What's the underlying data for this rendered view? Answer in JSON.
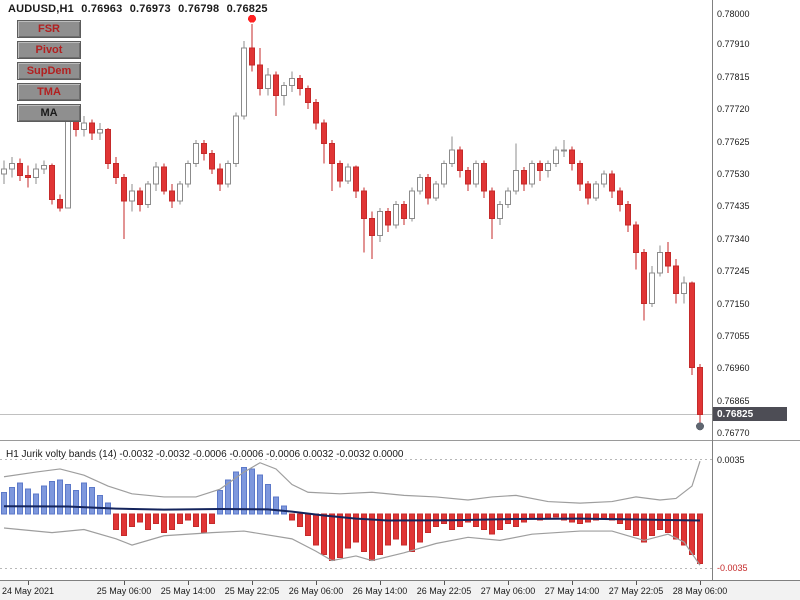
{
  "colors": {
    "bear": "#e03535",
    "bear_stroke": "#c52a2a",
    "bull_fill": "#ffffff",
    "bull_stroke": "#8c8c8c",
    "hist_pos": "#7e98dd",
    "hist_pos_stroke": "#5c79c9",
    "hist_neg": "#e03535",
    "hist_neg_stroke": "#c52a2a",
    "band": "#9e9e9e",
    "mid_line": "#14245c",
    "current_price_line": "#c0c0c0",
    "badge_bg": "#4d4d55"
  },
  "header": {
    "symbol": "AUDUSD,H1",
    "open": "0.76963",
    "high": "0.76973",
    "low": "0.76798",
    "close": "0.76825"
  },
  "buttons": [
    {
      "label": "FSR",
      "color": "#b22020"
    },
    {
      "label": "Pivot",
      "color": "#b22020"
    },
    {
      "label": "SupDem",
      "color": "#b22020"
    },
    {
      "label": "TMA",
      "color": "#b22020"
    },
    {
      "label": "MA",
      "color": "#1a1a1a"
    }
  ],
  "price_axis": {
    "labels": [
      "0.78000",
      "0.77910",
      "0.77815",
      "0.77720",
      "0.77625",
      "0.77530",
      "0.77435",
      "0.77340",
      "0.77245",
      "0.77150",
      "0.77055",
      "0.76960",
      "0.76865",
      "0.76770"
    ],
    "current": "0.76825"
  },
  "subwindow": {
    "label": "H1 Jurik volty bands (14) -0.0032 -0.0032 -0.0006 -0.0006 -0.0006 0.0032 -0.0032 0.0000",
    "axis_labels": [
      {
        "text": "0.0035",
        "value": 0.0035,
        "color": "#1a1a1a"
      },
      {
        "text": "-0.0035",
        "value": -0.0035,
        "color": "#c52a2a"
      }
    ]
  },
  "time_axis": {
    "labels": [
      {
        "text": "24 May 2021",
        "index": 3
      },
      {
        "text": "25 May 06:00",
        "index": 15
      },
      {
        "text": "25 May 14:00",
        "index": 23
      },
      {
        "text": "25 May 22:05",
        "index": 31
      },
      {
        "text": "26 May 06:00",
        "index": 39
      },
      {
        "text": "26 May 14:00",
        "index": 47
      },
      {
        "text": "26 May 22:05",
        "index": 55
      },
      {
        "text": "27 May 06:00",
        "index": 63
      },
      {
        "text": "27 May 14:00",
        "index": 71
      },
      {
        "text": "27 May 22:05",
        "index": 79
      },
      {
        "text": "28 May 06:00",
        "index": 87
      }
    ]
  },
  "chart_data": {
    "type": "candlestick",
    "symbol": "AUDUSD",
    "timeframe": "H1",
    "main": {
      "price_range": [
        0.7675,
        0.7804
      ],
      "current_price": 0.76825,
      "candles": [
        [
          0.7753,
          0.7757,
          0.775,
          0.77545
        ],
        [
          0.77545,
          0.7758,
          0.7752,
          0.7756
        ],
        [
          0.7756,
          0.77575,
          0.7751,
          0.77525
        ],
        [
          0.77525,
          0.77555,
          0.7749,
          0.7752
        ],
        [
          0.7752,
          0.7756,
          0.775,
          0.77545
        ],
        [
          0.77545,
          0.7757,
          0.7753,
          0.77555
        ],
        [
          0.77555,
          0.7756,
          0.7744,
          0.77455
        ],
        [
          0.77455,
          0.7747,
          0.7742,
          0.7743
        ],
        [
          0.7743,
          0.7772,
          0.7743,
          0.777
        ],
        [
          0.777,
          0.7773,
          0.7764,
          0.7766
        ],
        [
          0.7766,
          0.777,
          0.7764,
          0.7768
        ],
        [
          0.7768,
          0.7769,
          0.7763,
          0.7765
        ],
        [
          0.7765,
          0.7768,
          0.7763,
          0.7766
        ],
        [
          0.7766,
          0.77665,
          0.77545,
          0.7756
        ],
        [
          0.7756,
          0.7758,
          0.775,
          0.7752
        ],
        [
          0.7752,
          0.7753,
          0.7734,
          0.7745
        ],
        [
          0.7745,
          0.775,
          0.7742,
          0.7748
        ],
        [
          0.7748,
          0.7749,
          0.7742,
          0.7744
        ],
        [
          0.7744,
          0.7751,
          0.7743,
          0.775
        ],
        [
          0.775,
          0.77565,
          0.7748,
          0.7755
        ],
        [
          0.7755,
          0.7756,
          0.7747,
          0.7748
        ],
        [
          0.7748,
          0.775,
          0.7743,
          0.7745
        ],
        [
          0.7745,
          0.7751,
          0.7744,
          0.775
        ],
        [
          0.775,
          0.7757,
          0.7749,
          0.7756
        ],
        [
          0.7756,
          0.7763,
          0.7755,
          0.7762
        ],
        [
          0.7762,
          0.7763,
          0.7757,
          0.7759
        ],
        [
          0.7759,
          0.776,
          0.7753,
          0.77545
        ],
        [
          0.77545,
          0.7756,
          0.7748,
          0.775
        ],
        [
          0.775,
          0.7757,
          0.7749,
          0.7756
        ],
        [
          0.7756,
          0.7771,
          0.7755,
          0.777
        ],
        [
          0.777,
          0.7792,
          0.7769,
          0.779
        ],
        [
          0.779,
          0.7797,
          0.7783,
          0.7785
        ],
        [
          0.7785,
          0.779,
          0.7776,
          0.7778
        ],
        [
          0.7778,
          0.7784,
          0.7776,
          0.7782
        ],
        [
          0.7782,
          0.7783,
          0.777,
          0.7776
        ],
        [
          0.7776,
          0.778,
          0.7773,
          0.7779
        ],
        [
          0.7779,
          0.7783,
          0.7777,
          0.7781
        ],
        [
          0.7781,
          0.7782,
          0.7776,
          0.7778
        ],
        [
          0.7778,
          0.7779,
          0.7772,
          0.7774
        ],
        [
          0.7774,
          0.7775,
          0.7766,
          0.7768
        ],
        [
          0.7768,
          0.7769,
          0.7756,
          0.7762
        ],
        [
          0.7762,
          0.7763,
          0.7748,
          0.7756
        ],
        [
          0.7756,
          0.7757,
          0.7749,
          0.7751
        ],
        [
          0.7751,
          0.7756,
          0.775,
          0.7755
        ],
        [
          0.7755,
          0.77555,
          0.7746,
          0.7748
        ],
        [
          0.7748,
          0.7749,
          0.773,
          0.774
        ],
        [
          0.774,
          0.7742,
          0.7728,
          0.7735
        ],
        [
          0.7735,
          0.7743,
          0.7733,
          0.7742
        ],
        [
          0.7742,
          0.7743,
          0.7736,
          0.7738
        ],
        [
          0.7738,
          0.7745,
          0.7737,
          0.7744
        ],
        [
          0.7744,
          0.7745,
          0.7738,
          0.774
        ],
        [
          0.774,
          0.7749,
          0.7739,
          0.7748
        ],
        [
          0.7748,
          0.7753,
          0.7747,
          0.7752
        ],
        [
          0.7752,
          0.7753,
          0.7744,
          0.7746
        ],
        [
          0.7746,
          0.7751,
          0.7745,
          0.775
        ],
        [
          0.775,
          0.7757,
          0.7749,
          0.7756
        ],
        [
          0.7756,
          0.7764,
          0.7755,
          0.776
        ],
        [
          0.776,
          0.7761,
          0.7752,
          0.7754
        ],
        [
          0.7754,
          0.7755,
          0.7748,
          0.775
        ],
        [
          0.775,
          0.7757,
          0.7749,
          0.7756
        ],
        [
          0.7756,
          0.7757,
          0.7746,
          0.7748
        ],
        [
          0.7748,
          0.7749,
          0.7734,
          0.774
        ],
        [
          0.774,
          0.7745,
          0.7738,
          0.7744
        ],
        [
          0.7744,
          0.7749,
          0.7743,
          0.7748
        ],
        [
          0.7748,
          0.7762,
          0.7747,
          0.7754
        ],
        [
          0.7754,
          0.7755,
          0.7748,
          0.775
        ],
        [
          0.775,
          0.7757,
          0.7749,
          0.7756
        ],
        [
          0.7756,
          0.7757,
          0.7751,
          0.7754
        ],
        [
          0.7754,
          0.7757,
          0.7752,
          0.7756
        ],
        [
          0.7756,
          0.7761,
          0.7755,
          0.776
        ],
        [
          0.776,
          0.7763,
          0.7758,
          0.776
        ],
        [
          0.776,
          0.7761,
          0.7754,
          0.7756
        ],
        [
          0.7756,
          0.7757,
          0.7748,
          0.775
        ],
        [
          0.775,
          0.7751,
          0.7744,
          0.7746
        ],
        [
          0.7746,
          0.7751,
          0.7745,
          0.775
        ],
        [
          0.775,
          0.7754,
          0.7749,
          0.7753
        ],
        [
          0.7753,
          0.7754,
          0.7746,
          0.7748
        ],
        [
          0.7748,
          0.7749,
          0.7742,
          0.7744
        ],
        [
          0.7744,
          0.7745,
          0.7736,
          0.7738
        ],
        [
          0.7738,
          0.7739,
          0.7725,
          0.773
        ],
        [
          0.773,
          0.7731,
          0.771,
          0.7715
        ],
        [
          0.7715,
          0.7726,
          0.7714,
          0.7724
        ],
        [
          0.7724,
          0.7732,
          0.7723,
          0.773
        ],
        [
          0.773,
          0.7733,
          0.7724,
          0.7726
        ],
        [
          0.7726,
          0.7728,
          0.7715,
          0.7718
        ],
        [
          0.7718,
          0.7723,
          0.7715,
          0.7721
        ],
        [
          0.7721,
          0.77215,
          0.7694,
          0.76963
        ],
        [
          0.76963,
          0.76973,
          0.76798,
          0.76825
        ]
      ],
      "markers": [
        {
          "name": "high-signal-dot",
          "index": 31,
          "price": 0.77985,
          "color": "#ff2020"
        },
        {
          "name": "low-signal-dot",
          "index": 87,
          "price": 0.7679,
          "color": "#5f6670"
        }
      ]
    },
    "indicator": {
      "name": "H1 Jurik volty bands",
      "period": 14,
      "range": [
        -0.00425,
        0.00425
      ],
      "levels": [
        0.0035,
        -0.0035
      ],
      "histogram": [
        0.0014,
        0.0017,
        0.002,
        0.0016,
        0.0013,
        0.0018,
        0.0021,
        0.0022,
        0.0019,
        0.0015,
        0.002,
        0.0017,
        0.0012,
        0.0007,
        -0.001,
        -0.0014,
        -0.0008,
        -0.0005,
        -0.001,
        -0.0006,
        -0.0012,
        -0.001,
        -0.0006,
        -0.0004,
        -0.0008,
        -0.0012,
        -0.0006,
        0.0015,
        0.0022,
        0.0027,
        0.003,
        0.0029,
        0.0025,
        0.0019,
        0.0011,
        0.0005,
        -0.0004,
        -0.0008,
        -0.0014,
        -0.002,
        -0.0026,
        -0.003,
        -0.0028,
        -0.0022,
        -0.0018,
        -0.0024,
        -0.003,
        -0.0026,
        -0.002,
        -0.0016,
        -0.002,
        -0.0024,
        -0.0018,
        -0.0012,
        -0.0008,
        -0.0006,
        -0.001,
        -0.0008,
        -0.0005,
        -0.0008,
        -0.001,
        -0.0013,
        -0.001,
        -0.0006,
        -0.0008,
        -0.0005,
        -0.0003,
        -0.0004,
        -0.0003,
        -0.0002,
        -0.0004,
        -0.0005,
        -0.0006,
        -0.0005,
        -0.0004,
        -0.0003,
        -0.0004,
        -0.0006,
        -0.001,
        -0.0014,
        -0.0018,
        -0.0014,
        -0.001,
        -0.0012,
        -0.0016,
        -0.002,
        -0.0026,
        -0.0032
      ],
      "upper_band": [
        [
          0,
          0.0024
        ],
        [
          4,
          0.0027
        ],
        [
          7,
          0.0029
        ],
        [
          10,
          0.0025
        ],
        [
          13,
          0.0018
        ],
        [
          16,
          0.0013
        ],
        [
          20,
          0.0011
        ],
        [
          24,
          0.0011
        ],
        [
          27,
          0.0016
        ],
        [
          30,
          0.0027
        ],
        [
          32,
          0.0033
        ],
        [
          34,
          0.0029
        ],
        [
          36,
          0.0019
        ],
        [
          38,
          0.0014
        ],
        [
          42,
          0.0013
        ],
        [
          46,
          0.0014
        ],
        [
          50,
          0.0012
        ],
        [
          54,
          0.0011
        ],
        [
          58,
          0.0009
        ],
        [
          61,
          0.0011
        ],
        [
          64,
          0.0012
        ],
        [
          68,
          0.0008
        ],
        [
          72,
          0.0007
        ],
        [
          76,
          0.0008
        ],
        [
          79,
          0.0011
        ],
        [
          82,
          0.0009
        ],
        [
          84,
          0.001
        ],
        [
          86,
          0.0018
        ],
        [
          87,
          0.0034
        ]
      ],
      "lower_band": [
        [
          0,
          -0.0009
        ],
        [
          6,
          -0.0012
        ],
        [
          10,
          -0.001
        ],
        [
          14,
          -0.0016
        ],
        [
          16,
          -0.002
        ],
        [
          20,
          -0.0014
        ],
        [
          26,
          -0.0012
        ],
        [
          30,
          -0.0011
        ],
        [
          36,
          -0.0016
        ],
        [
          39,
          -0.0024
        ],
        [
          41,
          -0.003
        ],
        [
          44,
          -0.0027
        ],
        [
          46,
          -0.003
        ],
        [
          50,
          -0.0025
        ],
        [
          54,
          -0.0019
        ],
        [
          58,
          -0.0015
        ],
        [
          62,
          -0.0017
        ],
        [
          66,
          -0.0013
        ],
        [
          72,
          -0.0011
        ],
        [
          76,
          -0.0011
        ],
        [
          80,
          -0.0017
        ],
        [
          83,
          -0.0013
        ],
        [
          85,
          -0.0018
        ],
        [
          87,
          -0.0033
        ]
      ],
      "mid_line": [
        [
          0,
          0.0005
        ],
        [
          8,
          0.00048
        ],
        [
          14,
          0.00035
        ],
        [
          20,
          0.00028
        ],
        [
          27,
          0.00032
        ],
        [
          33,
          0.0003
        ],
        [
          36,
          0.00015
        ],
        [
          40,
          -0.0001
        ],
        [
          44,
          -0.0003
        ],
        [
          48,
          -0.00042
        ],
        [
          56,
          -0.0004
        ],
        [
          64,
          -0.00032
        ],
        [
          72,
          -0.0003
        ],
        [
          80,
          -0.00036
        ],
        [
          87,
          -0.00042
        ]
      ]
    }
  }
}
